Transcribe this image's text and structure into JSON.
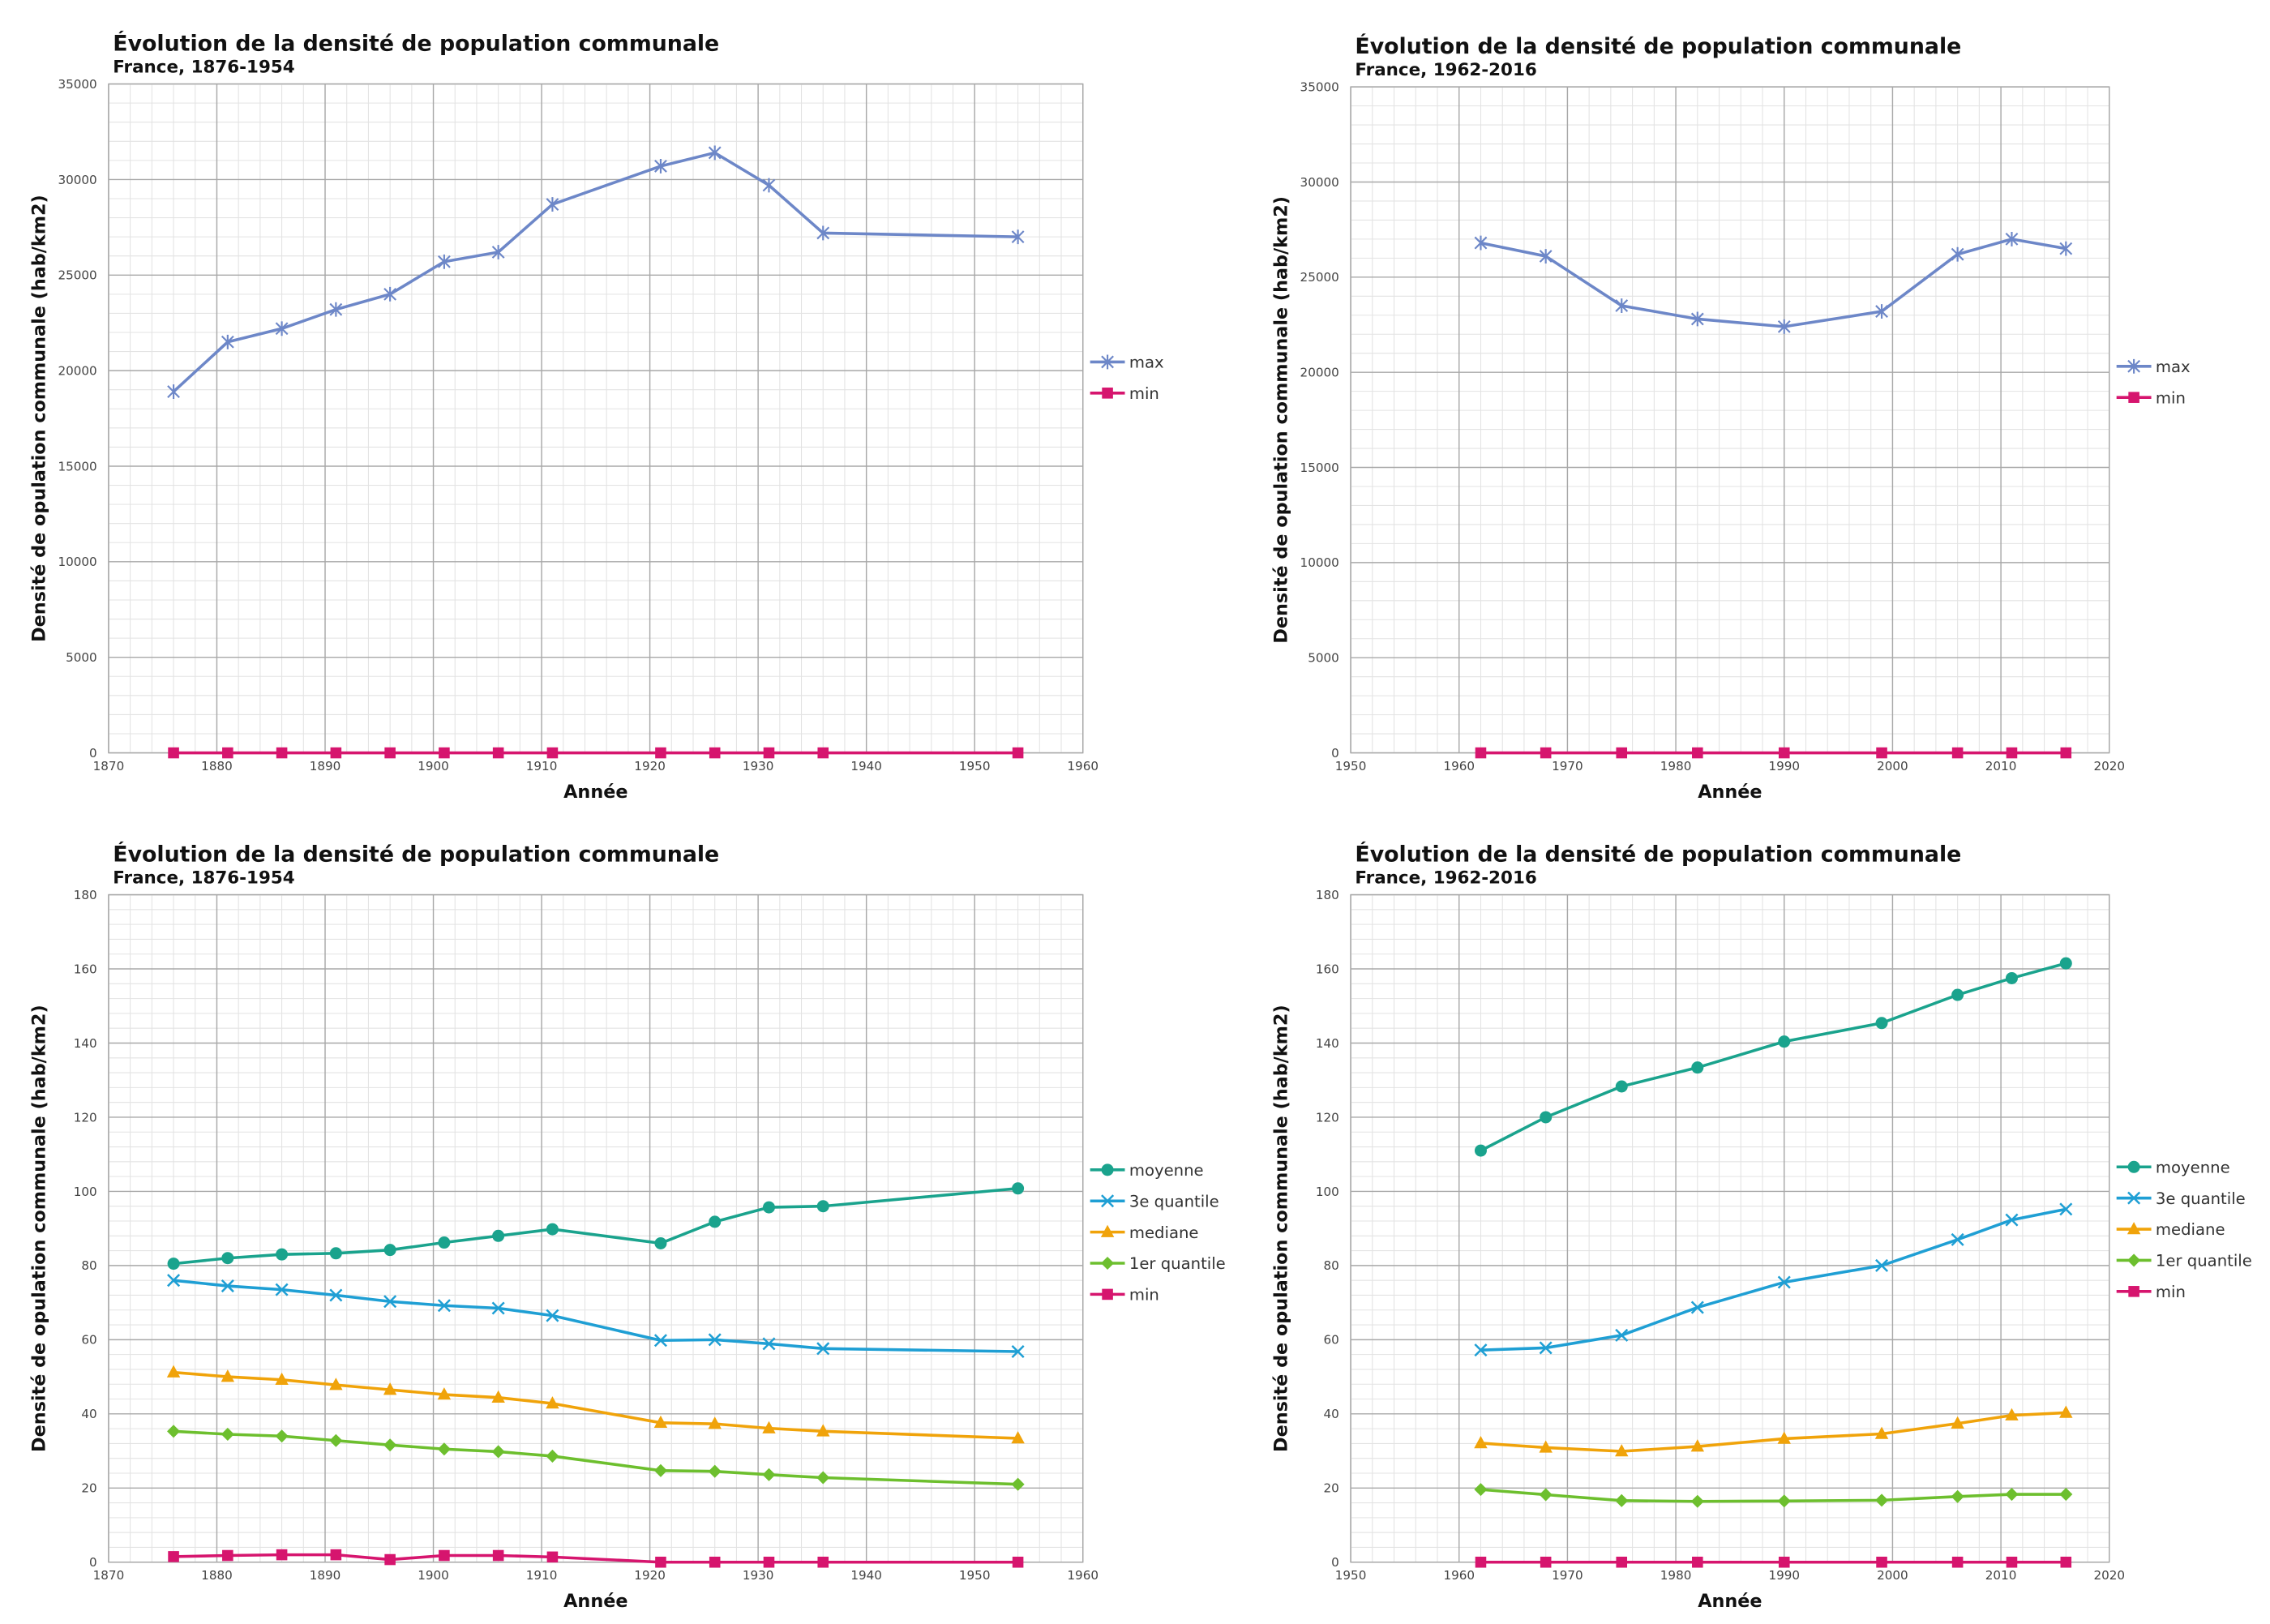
{
  "chart_data": [
    {
      "type": "line",
      "title": "Évolution de la densité de population communale",
      "subtitle": "France, 1876-1954",
      "x_label": "Année",
      "y_label": "Densité de opulation communale (hab/km2)",
      "x": [
        1876,
        1881,
        1886,
        1891,
        1896,
        1901,
        1906,
        1911,
        1921,
        1926,
        1931,
        1936,
        1954
      ],
      "series": [
        {
          "name": "max",
          "color": "#6d87c8",
          "marker": "asterisk",
          "values": [
            18900,
            21500,
            22200,
            23200,
            24000,
            25700,
            26200,
            28700,
            30700,
            31400,
            29700,
            27200,
            27000
          ]
        },
        {
          "name": "min",
          "color": "#d6156e",
          "marker": "square",
          "values": [
            0,
            0,
            0,
            0,
            0,
            0,
            0,
            0,
            0,
            0,
            0,
            0,
            0
          ]
        }
      ],
      "xlim": [
        1870,
        1960
      ],
      "xticks": [
        1870,
        1880,
        1890,
        1900,
        1910,
        1920,
        1930,
        1940,
        1950,
        1960
      ],
      "ylim": [
        0,
        35000
      ],
      "yticks": [
        0,
        5000,
        10000,
        15000,
        20000,
        25000,
        30000,
        35000
      ],
      "grid": true,
      "legend": "right"
    },
    {
      "type": "line",
      "title": "Évolution de la densité de population communale",
      "subtitle": "France, 1962-2016",
      "x_label": "Année",
      "y_label": "Densité de opulation communale (hab/km2)",
      "x": [
        1962,
        1968,
        1975,
        1982,
        1990,
        1999,
        2006,
        2011,
        2016
      ],
      "series": [
        {
          "name": "max",
          "color": "#6d87c8",
          "marker": "asterisk",
          "values": [
            26800,
            26100,
            23500,
            22800,
            22400,
            23200,
            26200,
            27000,
            26500
          ]
        },
        {
          "name": "min",
          "color": "#d6156e",
          "marker": "square",
          "values": [
            0,
            0,
            0,
            0,
            0,
            0,
            0,
            0,
            0
          ]
        }
      ],
      "xlim": [
        1950,
        2020
      ],
      "xticks": [
        1950,
        1960,
        1970,
        1980,
        1990,
        2000,
        2010,
        2020
      ],
      "ylim": [
        0,
        35000
      ],
      "yticks": [
        0,
        5000,
        10000,
        15000,
        20000,
        25000,
        30000,
        35000
      ],
      "grid": true,
      "legend": "right"
    },
    {
      "type": "line",
      "title": "Évolution de la densité de population communale",
      "subtitle": "France, 1876-1954",
      "x_label": "Année",
      "y_label": "Densité de opulation communale (hab/km2)",
      "x": [
        1876,
        1881,
        1886,
        1891,
        1896,
        1901,
        1906,
        1911,
        1921,
        1926,
        1931,
        1936,
        1954
      ],
      "series": [
        {
          "name": "moyenne",
          "color": "#1aa38d",
          "marker": "circle",
          "values": [
            80.5,
            82,
            83,
            83.3,
            84.2,
            86.2,
            88,
            89.8,
            86,
            91.8,
            95.7,
            96,
            100.8
          ]
        },
        {
          "name": "3e quantile",
          "color": "#1f9fd4",
          "marker": "x",
          "values": [
            76,
            74.5,
            73.5,
            72,
            70.3,
            69.2,
            68.5,
            66.5,
            59.8,
            60,
            58.9,
            57.6,
            56.8
          ]
        },
        {
          "name": "mediane",
          "color": "#f0a30a",
          "marker": "triangle",
          "values": [
            51.2,
            50,
            49.2,
            47.8,
            46.5,
            45.2,
            44.4,
            42.8,
            37.6,
            37.3,
            36.1,
            35.3,
            33.4
          ]
        },
        {
          "name": "1er quantile",
          "color": "#6dbf2e",
          "marker": "diamond",
          "values": [
            35.3,
            34.5,
            34,
            32.8,
            31.6,
            30.5,
            29.8,
            28.6,
            24.7,
            24.5,
            23.6,
            22.8,
            21
          ]
        },
        {
          "name": "min",
          "color": "#d6156e",
          "marker": "square",
          "values": [
            1.5,
            1.8,
            2,
            2,
            0.7,
            1.8,
            1.8,
            1.4,
            0,
            0,
            0,
            0,
            0
          ]
        }
      ],
      "xlim": [
        1870,
        1960
      ],
      "xticks": [
        1870,
        1880,
        1890,
        1900,
        1910,
        1920,
        1930,
        1940,
        1950,
        1960
      ],
      "ylim": [
        0,
        180
      ],
      "yticks": [
        0,
        20,
        40,
        60,
        80,
        100,
        120,
        140,
        160,
        180
      ],
      "grid": true,
      "legend": "right"
    },
    {
      "type": "line",
      "title": "Évolution de la densité de population communale",
      "subtitle": "France, 1962-2016",
      "x_label": "Année",
      "y_label": "Densité de opulation communale (hab/km2)",
      "x": [
        1962,
        1968,
        1975,
        1982,
        1990,
        1999,
        2006,
        2011,
        2016
      ],
      "series": [
        {
          "name": "moyenne",
          "color": "#1aa38d",
          "marker": "circle",
          "values": [
            111,
            120,
            128.3,
            133.4,
            140.4,
            145.4,
            153,
            157.5,
            161.5
          ]
        },
        {
          "name": "3e quantile",
          "color": "#1f9fd4",
          "marker": "x",
          "values": [
            57.2,
            57.8,
            61.2,
            68.7,
            75.5,
            80,
            87,
            92.3,
            95.2
          ]
        },
        {
          "name": "mediane",
          "color": "#f0a30a",
          "marker": "triangle",
          "values": [
            32.1,
            30.9,
            29.9,
            31.2,
            33.3,
            34.6,
            37.4,
            39.6,
            40.3
          ]
        },
        {
          "name": "1er quantile",
          "color": "#6dbf2e",
          "marker": "diamond",
          "values": [
            19.6,
            18.2,
            16.6,
            16.4,
            16.5,
            16.7,
            17.7,
            18.3,
            18.3
          ]
        },
        {
          "name": "min",
          "color": "#d6156e",
          "marker": "square",
          "values": [
            0,
            0,
            0,
            0,
            0,
            0,
            0,
            0,
            0
          ]
        }
      ],
      "xlim": [
        1950,
        2020
      ],
      "xticks": [
        1950,
        1960,
        1970,
        1980,
        1990,
        2000,
        2010,
        2020
      ],
      "ylim": [
        0,
        180
      ],
      "yticks": [
        0,
        20,
        40,
        60,
        80,
        100,
        120,
        140,
        160,
        180
      ],
      "grid": true,
      "legend": "right"
    }
  ]
}
